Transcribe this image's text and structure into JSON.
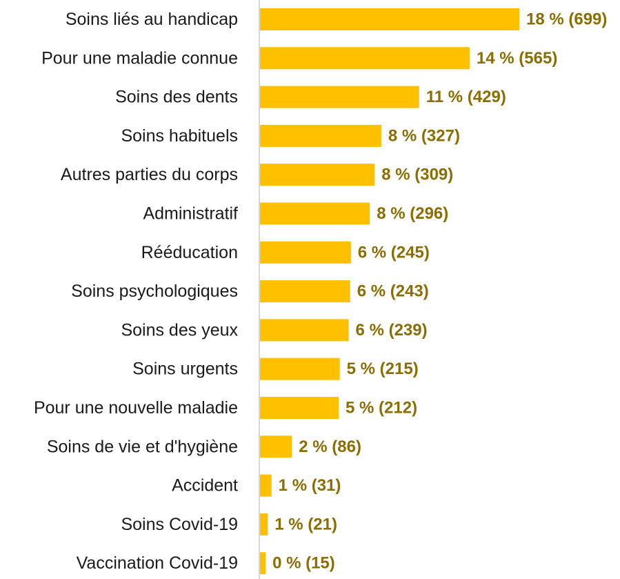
{
  "chart_data": {
    "type": "bar",
    "orientation": "horizontal",
    "categories": [
      "Soins liés au handicap",
      "Pour une maladie connue",
      "Soins des dents",
      "Soins habituels",
      "Autres parties du corps",
      "Administratif",
      "Rééducation",
      "Soins psychologiques",
      "Soins des yeux",
      "Soins urgents",
      "Pour une nouvelle maladie",
      "Soins de vie et d'hygiène",
      "Accident",
      "Soins Covid-19",
      "Vaccination Covid-19"
    ],
    "values": [
      699,
      565,
      429,
      327,
      309,
      296,
      245,
      243,
      239,
      215,
      212,
      86,
      31,
      21,
      15
    ],
    "data_labels": [
      "18 % (699)",
      "14 % (565)",
      "11 % (429)",
      "8 % (327)",
      "8 % (309)",
      "8 % (296)",
      "6 % (245)",
      "6 % (243)",
      "6 % (239)",
      "5 % (215)",
      "5 % (212)",
      "2 % (86)",
      "1 % (31)",
      "1 % (21)",
      "0 % (15)"
    ],
    "xlim": [
      0,
      699
    ],
    "grid": false,
    "legend": "none",
    "colors": {
      "bar": "#FFC000",
      "value_label": "#8B6D00",
      "axis_line": "#C8C8C8",
      "category_text": "#1a1a1a"
    }
  }
}
